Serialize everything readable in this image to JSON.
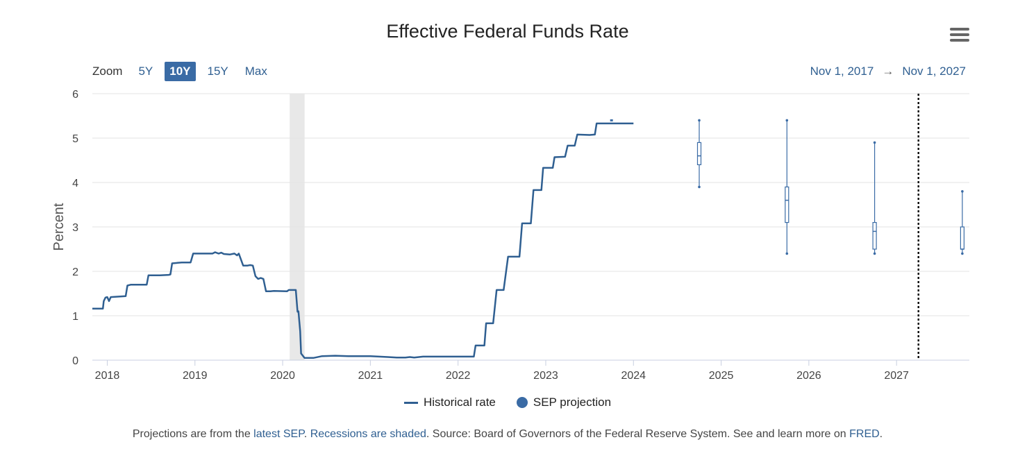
{
  "chart_data": {
    "type": "line",
    "title": "Effective Federal Funds Rate",
    "ylabel": "Percent",
    "xlabel": "",
    "ylim": [
      0,
      6
    ],
    "xlim": [
      2017.83,
      2027.83
    ],
    "y_ticks": [
      "0",
      "1",
      "2",
      "3",
      "4",
      "5",
      "6"
    ],
    "x_ticks": [
      {
        "value": 2018,
        "label": "2018"
      },
      {
        "value": 2019,
        "label": "2019"
      },
      {
        "value": 2020,
        "label": "2020"
      },
      {
        "value": 2021,
        "label": "2021"
      },
      {
        "value": 2022,
        "label": "2022"
      },
      {
        "value": 2023,
        "label": "2023"
      },
      {
        "value": 2024,
        "label": "2024"
      },
      {
        "value": 2025,
        "label": "2025"
      },
      {
        "value": 2026,
        "label": "2026"
      },
      {
        "value": 2027,
        "label": "2027"
      }
    ],
    "grid": true,
    "legend_position": "bottom-center",
    "recession_shading": [
      {
        "start": 2020.08,
        "end": 2020.25
      }
    ],
    "marker_line": {
      "x": 2027.25,
      "style": "dotted"
    },
    "series": [
      {
        "name": "Historical rate",
        "color": "#2f5f91",
        "points": [
          [
            2017.83,
            1.16
          ],
          [
            2017.95,
            1.16
          ],
          [
            2017.96,
            1.33
          ],
          [
            2017.98,
            1.41
          ],
          [
            2018.0,
            1.42
          ],
          [
            2018.02,
            1.33
          ],
          [
            2018.04,
            1.42
          ],
          [
            2018.21,
            1.44
          ],
          [
            2018.23,
            1.68
          ],
          [
            2018.27,
            1.7
          ],
          [
            2018.3,
            1.7
          ],
          [
            2018.45,
            1.7
          ],
          [
            2018.47,
            1.91
          ],
          [
            2018.6,
            1.91
          ],
          [
            2018.7,
            1.92
          ],
          [
            2018.72,
            1.93
          ],
          [
            2018.74,
            2.18
          ],
          [
            2018.8,
            2.19
          ],
          [
            2018.85,
            2.2
          ],
          [
            2018.95,
            2.2
          ],
          [
            2018.98,
            2.4
          ],
          [
            2019.2,
            2.4
          ],
          [
            2019.23,
            2.43
          ],
          [
            2019.27,
            2.4
          ],
          [
            2019.3,
            2.42
          ],
          [
            2019.33,
            2.39
          ],
          [
            2019.4,
            2.38
          ],
          [
            2019.45,
            2.4
          ],
          [
            2019.48,
            2.36
          ],
          [
            2019.5,
            2.4
          ],
          [
            2019.55,
            2.13
          ],
          [
            2019.6,
            2.13
          ],
          [
            2019.63,
            2.14
          ],
          [
            2019.66,
            2.13
          ],
          [
            2019.69,
            1.89
          ],
          [
            2019.72,
            1.83
          ],
          [
            2019.75,
            1.85
          ],
          [
            2019.78,
            1.83
          ],
          [
            2019.81,
            1.55
          ],
          [
            2019.86,
            1.55
          ],
          [
            2019.9,
            1.56
          ],
          [
            2020.05,
            1.55
          ],
          [
            2020.07,
            1.58
          ],
          [
            2020.15,
            1.58
          ],
          [
            2020.17,
            1.09
          ],
          [
            2020.18,
            1.1
          ],
          [
            2020.2,
            0.65
          ],
          [
            2020.21,
            0.15
          ],
          [
            2020.25,
            0.05
          ],
          [
            2020.35,
            0.05
          ],
          [
            2020.45,
            0.09
          ],
          [
            2020.6,
            0.1
          ],
          [
            2020.75,
            0.09
          ],
          [
            2020.9,
            0.09
          ],
          [
            2021.0,
            0.09
          ],
          [
            2021.2,
            0.07
          ],
          [
            2021.3,
            0.06
          ],
          [
            2021.4,
            0.06
          ],
          [
            2021.45,
            0.07
          ],
          [
            2021.5,
            0.06
          ],
          [
            2021.6,
            0.08
          ],
          [
            2021.7,
            0.08
          ],
          [
            2021.8,
            0.08
          ],
          [
            2022.0,
            0.08
          ],
          [
            2022.18,
            0.08
          ],
          [
            2022.2,
            0.33
          ],
          [
            2022.3,
            0.33
          ],
          [
            2022.32,
            0.83
          ],
          [
            2022.4,
            0.83
          ],
          [
            2022.44,
            1.58
          ],
          [
            2022.52,
            1.58
          ],
          [
            2022.57,
            2.33
          ],
          [
            2022.7,
            2.33
          ],
          [
            2022.73,
            3.08
          ],
          [
            2022.83,
            3.08
          ],
          [
            2022.86,
            3.83
          ],
          [
            2022.95,
            3.83
          ],
          [
            2022.97,
            4.33
          ],
          [
            2023.08,
            4.33
          ],
          [
            2023.1,
            4.57
          ],
          [
            2023.22,
            4.58
          ],
          [
            2023.25,
            4.83
          ],
          [
            2023.33,
            4.83
          ],
          [
            2023.36,
            5.08
          ],
          [
            2023.5,
            5.07
          ],
          [
            2023.56,
            5.08
          ],
          [
            2023.58,
            5.33
          ],
          [
            2024.0,
            5.33
          ]
        ]
      },
      {
        "name": "SEP projection",
        "color": "#3a6ba5",
        "boxes": [
          {
            "x": 2024.75,
            "min": 3.9,
            "q1": 4.4,
            "median": 4.6,
            "q3": 4.9,
            "max": 5.4
          },
          {
            "x": 2025.75,
            "min": 2.4,
            "q1": 3.1,
            "median": 3.6,
            "q3": 3.9,
            "max": 5.4
          },
          {
            "x": 2026.75,
            "min": 2.4,
            "q1": 2.5,
            "median": 2.9,
            "q3": 3.1,
            "max": 4.9
          },
          {
            "x": 2027.75,
            "min": 2.4,
            "q1": 2.5,
            "median": 2.5,
            "q3": 3.0,
            "max": 3.8
          }
        ],
        "extra_points": [
          {
            "x": 2023.75,
            "y": 5.4
          }
        ]
      }
    ]
  },
  "toolbar": {
    "zoom_label": "Zoom",
    "zoom_options": [
      "5Y",
      "10Y",
      "15Y",
      "Max"
    ],
    "active_zoom": "10Y",
    "range_start": "Nov 1, 2017",
    "range_arrow": "→",
    "range_end": "Nov 1, 2027"
  },
  "caption": {
    "p1": "Projections are from the ",
    "link1": "latest SEP",
    "p2": ". ",
    "link2": "Recessions are shaded",
    "p3": ". Source: Board of Governors of the Federal Reserve System. See and learn more on ",
    "link3": "FRED",
    "p4": "."
  }
}
